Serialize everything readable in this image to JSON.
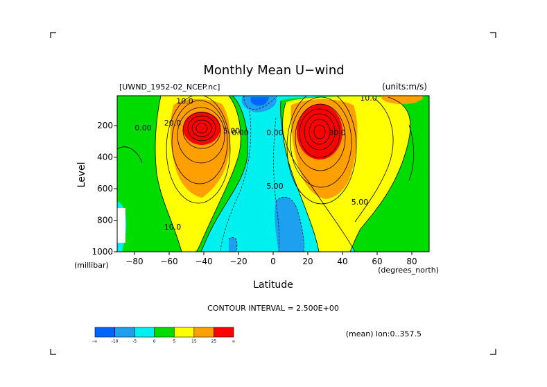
{
  "chart_data": {
    "type": "contour",
    "title": "Monthly Mean U−wind",
    "dataset_label": "[UWND_1952-02_NCEP.nc]",
    "units_label": "(units:m/s)",
    "xlabel": "Latitude",
    "ylabel": "Level",
    "x_units": "(degrees_north)",
    "y_units": "(millibar)",
    "x_ticks": [
      "−80",
      "−60",
      "−40",
      "−20",
      "0",
      "20",
      "40",
      "60",
      "80"
    ],
    "x_tick_values": [
      -80,
      -60,
      -40,
      -20,
      0,
      20,
      40,
      60,
      80
    ],
    "y_ticks": [
      "200",
      "400",
      "600",
      "800",
      "1000"
    ],
    "y_tick_values": [
      200,
      400,
      600,
      800,
      1000
    ],
    "xlim": [
      -90,
      90
    ],
    "ylim": [
      1000,
      10
    ],
    "contour_interval_text": "CONTOUR INTERVAL = 2.500E+00",
    "mean_text": "(mean) lon:0..357.5",
    "jets": [
      {
        "lat": -43,
        "level": 200,
        "max": 37
      },
      {
        "lat": 30,
        "level": 200,
        "max": 47
      }
    ],
    "contour_labels": [
      {
        "text": "10.0",
        "lat": -51,
        "level": 60
      },
      {
        "text": "20.0",
        "lat": -58,
        "level": 200
      },
      {
        "text": "0.00",
        "lat": -75,
        "level": 230
      },
      {
        "text": "5.00",
        "lat": -24,
        "level": 250
      },
      {
        "text": "0.00",
        "lat": -19,
        "level": 260
      },
      {
        "text": "0.00",
        "lat": 1,
        "level": 260
      },
      {
        "text": "5.00",
        "lat": 1,
        "level": 600
      },
      {
        "text": "10.0",
        "lat": -58,
        "level": 860
      },
      {
        "text": "30.0",
        "lat": 37,
        "level": 260
      },
      {
        "text": "10.0",
        "lat": 55,
        "level": 40
      },
      {
        "text": "5.00",
        "lat": 50,
        "level": 700
      }
    ],
    "colorbar": {
      "levels": [
        "-∞",
        "-10",
        "-5",
        "0",
        "5",
        "15",
        "25",
        "∞"
      ],
      "colors": [
        "#0064ff",
        "#1ea0f0",
        "#00f0f0",
        "#00dc00",
        "#ffff00",
        "#ffa000",
        "#ff0000"
      ]
    }
  }
}
